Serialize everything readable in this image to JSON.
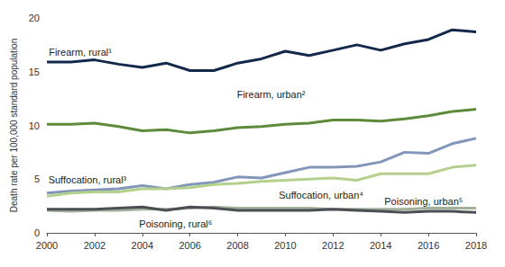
{
  "chart_data": {
    "type": "line",
    "y_label": "Death rate per 100,000 standard population",
    "x": [
      2000,
      2001,
      2002,
      2003,
      2004,
      2005,
      2006,
      2007,
      2008,
      2009,
      2010,
      2011,
      2012,
      2013,
      2014,
      2015,
      2016,
      2017,
      2018
    ],
    "xlim": [
      2000,
      2018
    ],
    "xticks": [
      2000,
      2002,
      2004,
      2006,
      2008,
      2010,
      2012,
      2014,
      2016,
      2018
    ],
    "ylim": [
      0,
      20
    ],
    "yticks": [
      0,
      5,
      10,
      15,
      20
    ],
    "grid": false,
    "series": [
      {
        "name": "Firearm, rural¹",
        "color": "#13294b",
        "values": [
          15.9,
          15.9,
          16.1,
          15.7,
          15.4,
          15.8,
          15.1,
          15.1,
          15.8,
          16.2,
          16.9,
          16.5,
          17.0,
          17.5,
          17.0,
          17.6,
          18.0,
          18.9,
          18.7
        ]
      },
      {
        "name": "Firearm, urban²",
        "color": "#5e8b3b",
        "values": [
          10.1,
          10.1,
          10.2,
          9.9,
          9.5,
          9.6,
          9.3,
          9.5,
          9.8,
          9.9,
          10.1,
          10.2,
          10.5,
          10.5,
          10.4,
          10.6,
          10.9,
          11.3,
          11.5
        ]
      },
      {
        "name": "Suffocation, rural³",
        "color": "#8196b8",
        "values": [
          3.7,
          3.9,
          4.0,
          4.1,
          4.4,
          4.1,
          4.5,
          4.7,
          5.2,
          5.1,
          5.6,
          6.1,
          6.1,
          6.2,
          6.6,
          7.5,
          7.4,
          8.3,
          8.8
        ]
      },
      {
        "name": "Suffocation, urban⁴",
        "color": "#b3d08c",
        "values": [
          3.4,
          3.7,
          3.8,
          3.8,
          4.1,
          4.1,
          4.2,
          4.5,
          4.6,
          4.8,
          4.9,
          5.0,
          5.1,
          4.9,
          5.5,
          5.5,
          5.5,
          6.1,
          6.3
        ]
      },
      {
        "name": "Poisoning, urban⁵",
        "color": "#a3b09a",
        "values": [
          2.1,
          2.0,
          2.1,
          2.1,
          2.2,
          2.2,
          2.3,
          2.4,
          2.3,
          2.3,
          2.3,
          2.3,
          2.2,
          2.2,
          2.2,
          2.2,
          2.3,
          2.3,
          2.3
        ]
      },
      {
        "name": "Poisoning, rural⁶",
        "color": "#4a4f55",
        "values": [
          2.2,
          2.2,
          2.2,
          2.3,
          2.4,
          2.1,
          2.4,
          2.3,
          2.1,
          2.1,
          2.1,
          2.1,
          2.2,
          2.1,
          2.0,
          1.9,
          2.0,
          2.0,
          1.9
        ]
      }
    ],
    "annotations": [
      {
        "text": "Firearm, rural¹",
        "x": 2001.4,
        "y": 16.8
      },
      {
        "text": "Firearm, urban²",
        "x": 2009.4,
        "y": 12.9
      },
      {
        "text": "Suffocation, rural³",
        "x": 2001.7,
        "y": 4.9
      },
      {
        "text": "Suffocation, urban⁴",
        "x": 2011.5,
        "y": 3.5
      },
      {
        "text": "Poisoning, urban⁵",
        "x": 2015.8,
        "y": 2.9
      },
      {
        "text": "Poisoning, rural⁶",
        "x": 2005.4,
        "y": 0.8
      }
    ]
  }
}
